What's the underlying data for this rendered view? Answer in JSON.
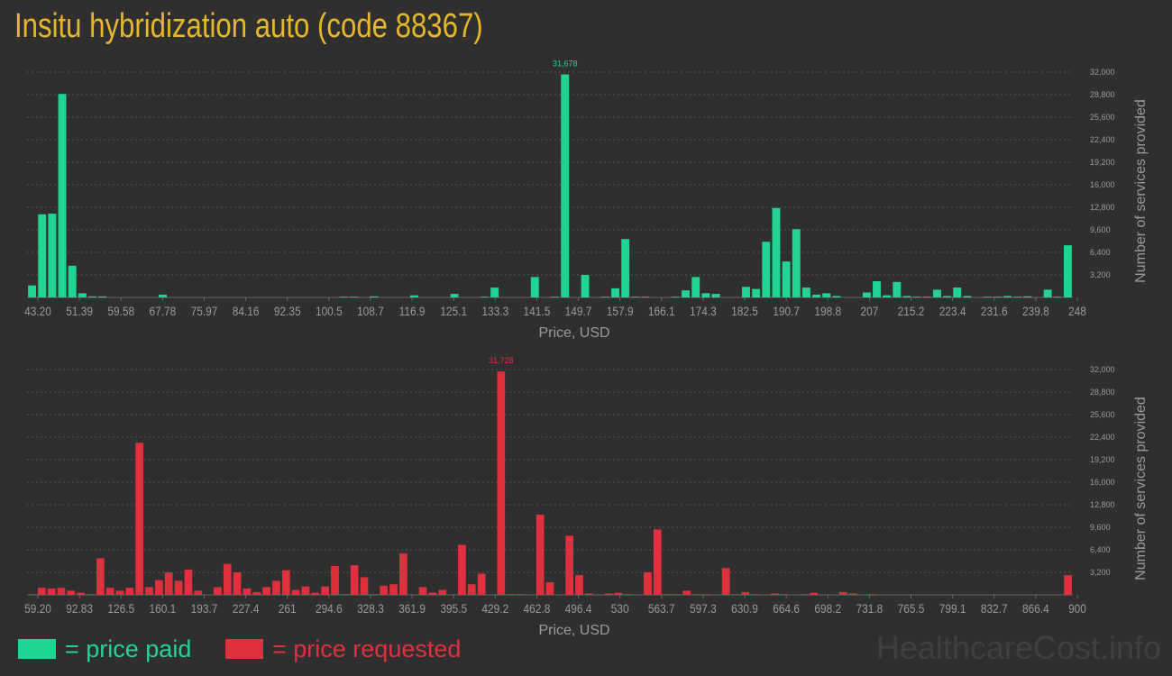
{
  "title": "Insitu hybridization auto (code 88367)",
  "legend": {
    "paid_label": "= price paid",
    "requested_label": "= price requested"
  },
  "brand": "HealthcareCost.info",
  "colors": {
    "paid": "#22d493",
    "requested": "#e0303e",
    "background": "#2f2f2f",
    "title": "#e8b62a",
    "axis_text": "#9a9a9a",
    "grid": "#555555"
  },
  "chart_data": [
    {
      "type": "bar",
      "name": "price paid",
      "xlabel": "Price, USD",
      "ylabel": "Number of services provided",
      "ylim": [
        0,
        32000
      ],
      "y_ticks": [
        "3,200",
        "6,400",
        "9,600",
        "12,800",
        "16,000",
        "19,200",
        "22,400",
        "25,600",
        "28,800",
        "32,000"
      ],
      "x_tick_labels": [
        "43.20",
        "51.39",
        "59.58",
        "67.78",
        "75.97",
        "84.16",
        "92.35",
        "100.5",
        "108.7",
        "116.9",
        "125.1",
        "133.3",
        "141.5",
        "149.7",
        "157.9",
        "166.1",
        "174.3",
        "182.5",
        "190.7",
        "198.8",
        "207",
        "215.2",
        "223.4",
        "231.6",
        "239.8",
        "248"
      ],
      "peak_label": "31,678",
      "grid": true,
      "values": [
        1700,
        11800,
        11900,
        28900,
        4500,
        600,
        150,
        150,
        0,
        0,
        0,
        0,
        0,
        400,
        0,
        0,
        0,
        0,
        0,
        0,
        0,
        0,
        0,
        0,
        0,
        0,
        0,
        0,
        0,
        0,
        0,
        100,
        100,
        0,
        150,
        0,
        0,
        0,
        300,
        0,
        0,
        0,
        500,
        0,
        0,
        100,
        1400,
        0,
        0,
        0,
        2900,
        0,
        100,
        31678,
        0,
        3200,
        0,
        100,
        1300,
        8300,
        100,
        100,
        0,
        0,
        100,
        1000,
        2900,
        600,
        500,
        0,
        0,
        1500,
        1200,
        7900,
        12700,
        5100,
        9700,
        1400,
        400,
        600,
        200,
        0,
        0,
        700,
        2300,
        300,
        2200,
        200,
        100,
        100,
        1100,
        200,
        1400,
        200,
        0,
        100,
        100,
        200,
        100,
        150,
        0,
        1100,
        100,
        7400
      ]
    },
    {
      "type": "bar",
      "name": "price requested",
      "xlabel": "Price, USD",
      "ylabel": "Number of services provided",
      "ylim": [
        0,
        32000
      ],
      "y_ticks": [
        "3,200",
        "6,400",
        "9,600",
        "12,800",
        "16,000",
        "19,200",
        "22,400",
        "25,600",
        "28,800",
        "32,000"
      ],
      "x_tick_labels": [
        "59.20",
        "92.83",
        "126.5",
        "160.1",
        "193.7",
        "227.4",
        "261",
        "294.6",
        "328.3",
        "361.9",
        "395.5",
        "429.2",
        "462.8",
        "496.4",
        "530",
        "563.7",
        "597.3",
        "630.9",
        "664.6",
        "698.2",
        "731.8",
        "765.5",
        "799.1",
        "832.7",
        "866.4",
        "900"
      ],
      "peak_label": "31,728",
      "grid": true,
      "values": [
        100,
        1000,
        900,
        1000,
        600,
        300,
        100,
        5200,
        1000,
        600,
        1000,
        21600,
        1100,
        2100,
        3200,
        2000,
        3600,
        600,
        0,
        1100,
        4400,
        3200,
        900,
        400,
        1100,
        2000,
        3500,
        700,
        1200,
        300,
        1200,
        4100,
        100,
        4200,
        2500,
        100,
        1300,
        1500,
        5900,
        0,
        1100,
        300,
        700,
        0,
        7100,
        1500,
        3000,
        0,
        31728,
        100,
        100,
        0,
        11400,
        1800,
        0,
        8400,
        2800,
        200,
        0,
        200,
        300,
        100,
        0,
        3200,
        9300,
        100,
        100,
        600,
        100,
        100,
        0,
        3800,
        100,
        400,
        100,
        0,
        200,
        100,
        0,
        100,
        300,
        0,
        0,
        400,
        200,
        0,
        100,
        0,
        0,
        0,
        0,
        0,
        0,
        0,
        0,
        0,
        0,
        0,
        0,
        0,
        0,
        0,
        0,
        0,
        0,
        0,
        2800
      ]
    }
  ]
}
